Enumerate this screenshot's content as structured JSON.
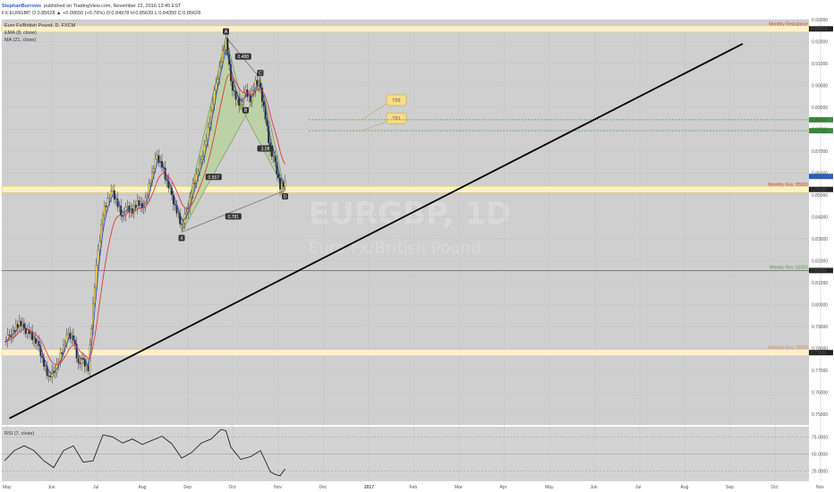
{
  "header": {
    "author": "StephanBurrows",
    "published": "published on TradingView.com, November 22, 2016 13:45 EST",
    "quote": "FX:EURGBP, D  0.85628  ▲ +0.00650 (+0.76%)  O:0.84978  H:0.85639  L:0.84350  C:0.85628",
    "pair_line": "Euro Fx/British Pound, D, FXCM",
    "ema_line": "EMA (8, close)",
    "ma_line": "MA (21, close)",
    "rsi_line": "RSI (7, close)"
  },
  "watermark": {
    "symbol": "EURGBP, 1D",
    "name": "Euro Fx/British Pound"
  },
  "colors": {
    "background": "#cfcfcf",
    "panel_bg": "#d3d3d3",
    "bull": "#f5d64a",
    "bear": "#222222",
    "ema": "#2b45d1",
    "ma": "#e02b2b",
    "trendline": "#000000",
    "zone_fill": "#fbf1c8",
    "zone_border": "#e9cd6f",
    "pattern_fill": "#b7d19a",
    "tp_line": "#4ca64c",
    "callout": "#f7dc8a"
  },
  "chart_data": {
    "type": "candlestick",
    "title": "Euro Fx/British Pound, D, FXCM",
    "x_ticks": [
      "May",
      "Jun",
      "Jul",
      "Aug",
      "Sep",
      "Oct",
      "Nov",
      "Dec",
      "2017",
      "Feb",
      "Mar",
      "Apr",
      "May",
      "Jun",
      "Jul",
      "Aug",
      "Sep",
      "Oct",
      "Nov",
      "23"
    ],
    "y_ticks": [
      "0.93000",
      "0.92000",
      "0.91000",
      "0.90000",
      "0.89000",
      "0.88000",
      "0.87000",
      "0.86000",
      "0.85000",
      "0.84000",
      "0.83000",
      "0.82000",
      "0.81000",
      "0.80000",
      "0.79000",
      "0.78000",
      "0.77000",
      "0.76000",
      "0.75000"
    ],
    "ylim": [
      0.745,
      0.93
    ],
    "price_path": [
      [
        0,
        0.783
      ],
      [
        1,
        0.786
      ],
      [
        2,
        0.788
      ],
      [
        3,
        0.792
      ],
      [
        4,
        0.789
      ],
      [
        5,
        0.787
      ],
      [
        6,
        0.784
      ],
      [
        7,
        0.781
      ],
      [
        8,
        0.772
      ],
      [
        9,
        0.767
      ],
      [
        10,
        0.769
      ],
      [
        11,
        0.774
      ],
      [
        12,
        0.781
      ],
      [
        13,
        0.787
      ],
      [
        14,
        0.784
      ],
      [
        15,
        0.773
      ],
      [
        16,
        0.775
      ],
      [
        17,
        0.77
      ],
      [
        18,
        0.8
      ],
      [
        19,
        0.825
      ],
      [
        20,
        0.841
      ],
      [
        21,
        0.848
      ],
      [
        22,
        0.852
      ],
      [
        23,
        0.845
      ],
      [
        24,
        0.84
      ],
      [
        25,
        0.845
      ],
      [
        26,
        0.842
      ],
      [
        27,
        0.847
      ],
      [
        28,
        0.844
      ],
      [
        29,
        0.85
      ],
      [
        30,
        0.86
      ],
      [
        31,
        0.868
      ],
      [
        32,
        0.863
      ],
      [
        33,
        0.856
      ],
      [
        34,
        0.85
      ],
      [
        35,
        0.842
      ],
      [
        36,
        0.836
      ],
      [
        37,
        0.842
      ],
      [
        38,
        0.851
      ],
      [
        39,
        0.859
      ],
      [
        40,
        0.866
      ],
      [
        41,
        0.875
      ],
      [
        42,
        0.888
      ],
      [
        43,
        0.901
      ],
      [
        44,
        0.911
      ],
      [
        45,
        0.921
      ],
      [
        46,
        0.902
      ],
      [
        47,
        0.894
      ],
      [
        48,
        0.891
      ],
      [
        49,
        0.898
      ],
      [
        50,
        0.893
      ],
      [
        51,
        0.902
      ],
      [
        52,
        0.899
      ],
      [
        53,
        0.885
      ],
      [
        54,
        0.87
      ],
      [
        55,
        0.865
      ],
      [
        56,
        0.853
      ],
      [
        57,
        0.856
      ]
    ],
    "ema_label": "EMA (8, close)",
    "ma_label": "MA (21, close)",
    "pattern": {
      "points": [
        {
          "label": "X",
          "x": 36,
          "y": 0.833
        },
        {
          "label": "A",
          "x": 45,
          "y": 0.922
        },
        {
          "label": "B",
          "x": 49,
          "y": 0.886
        },
        {
          "label": "C",
          "x": 52,
          "y": 0.903
        },
        {
          "label": "D",
          "x": 57,
          "y": 0.852
        }
      ],
      "ratios": [
        {
          "text": "0.488",
          "x": 48.5,
          "y": 0.913
        },
        {
          "text": "0.557",
          "x": 42.5,
          "y": 0.858
        },
        {
          "text": "3.08",
          "x": 53,
          "y": 0.871
        },
        {
          "text": "0.781",
          "x": 46.5,
          "y": 0.84
        }
      ]
    },
    "levels": [
      {
        "label": "Monthly Resistance",
        "value": 0.9258,
        "tag": "0.92574",
        "color": "#e04040",
        "zone": true
      },
      {
        "label": "Monthly Res: 85000",
        "value": 0.8525,
        "tag": "0.85299",
        "color": "#e04040",
        "zone": true
      },
      {
        "label": "Weekly Res: 81502",
        "value": 0.8155,
        "tag": "0.81552",
        "color": "#4ca64c",
        "zone": false
      },
      {
        "label": "Monthly Res: 78000",
        "value": 0.778,
        "tag": "0.77806",
        "color": "#e08080",
        "zone": true
      }
    ],
    "targets": [
      {
        "label": "TP1",
        "value": 0.8793,
        "tag": "0.87930"
      },
      {
        "label": "TP2",
        "value": 0.8843,
        "tag": "0.88433"
      }
    ],
    "current_price_tag": "0.85626",
    "trendline": {
      "from": [
        1,
        0.748
      ],
      "to": [
        150,
        0.919
      ]
    },
    "rsi": {
      "label": "RSI (7, close)",
      "ticks": [
        "75.0000",
        "50.0000",
        "25.0000"
      ],
      "ylim": [
        10,
        90
      ],
      "values": [
        [
          0,
          40
        ],
        [
          2,
          55
        ],
        [
          4,
          62
        ],
        [
          6,
          55
        ],
        [
          8,
          40
        ],
        [
          10,
          30
        ],
        [
          12,
          55
        ],
        [
          14,
          62
        ],
        [
          16,
          38
        ],
        [
          18,
          40
        ],
        [
          20,
          78
        ],
        [
          22,
          75
        ],
        [
          24,
          66
        ],
        [
          26,
          72
        ],
        [
          28,
          64
        ],
        [
          30,
          70
        ],
        [
          32,
          76
        ],
        [
          34,
          65
        ],
        [
          36,
          44
        ],
        [
          38,
          52
        ],
        [
          40,
          66
        ],
        [
          42,
          72
        ],
        [
          44,
          86
        ],
        [
          45,
          84
        ],
        [
          46,
          60
        ],
        [
          48,
          42
        ],
        [
          50,
          46
        ],
        [
          52,
          55
        ],
        [
          53,
          40
        ],
        [
          54,
          24
        ],
        [
          55,
          20
        ],
        [
          56,
          18
        ],
        [
          57,
          28
        ]
      ]
    }
  }
}
